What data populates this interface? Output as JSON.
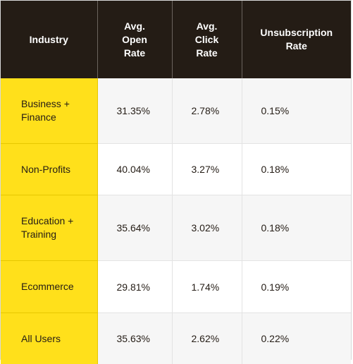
{
  "headers": [
    "Industry",
    "Avg.\nOpen\nRate",
    "Avg.\nClick\nRate",
    "Unsubscription\nRate"
  ],
  "rows": [
    {
      "industry": "Business +\nFinance",
      "open": "31.35%",
      "click": "2.78%",
      "unsub": "0.15%"
    },
    {
      "industry": "Non-Profits",
      "open": "40.04%",
      "click": "3.27%",
      "unsub": "0.18%"
    },
    {
      "industry": "Education +\nTraining",
      "open": "35.64%",
      "click": "3.02%",
      "unsub": "0.18%"
    },
    {
      "industry": "Ecommerce",
      "open": "29.81%",
      "click": "1.74%",
      "unsub": "0.19%"
    },
    {
      "industry": "All Users",
      "open": "35.63%",
      "click": "2.62%",
      "unsub": "0.22%"
    }
  ],
  "colors": {
    "header_bg": "#241c15",
    "header_text": "#ffffff",
    "industry_bg": "#ffe01b",
    "alt_row_bg": "#f6f6f6"
  }
}
